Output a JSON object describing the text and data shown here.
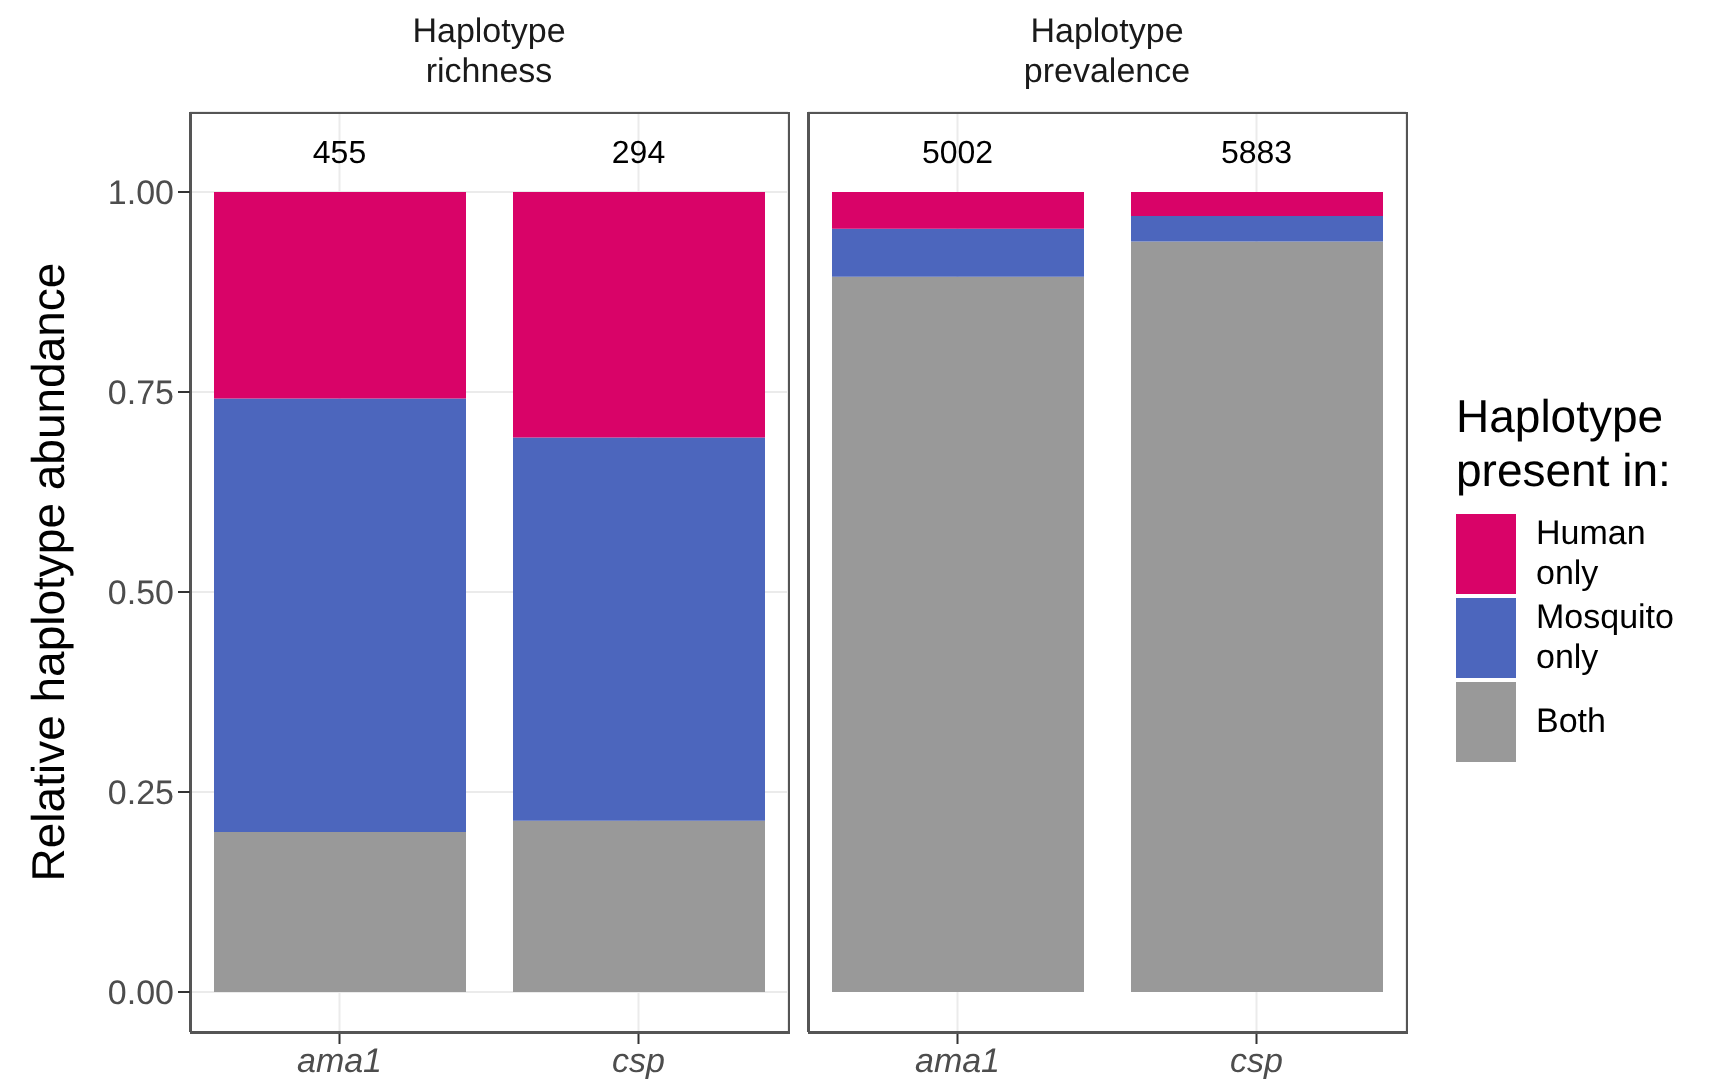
{
  "chart_data": [
    {
      "type": "bar",
      "title": "Haplotype\nrichness",
      "ylabel": "Relative haplotype abundance",
      "categories": [
        "ama1",
        "csp"
      ],
      "stacked": true,
      "ylim": [
        -0.05,
        1.1
      ],
      "yticks": [
        {
          "value": 0,
          "label": "0.00"
        },
        {
          "value": 0.25,
          "label": "0.25"
        },
        {
          "value": 0.5,
          "label": "0.50"
        },
        {
          "value": 0.75,
          "label": "0.75"
        },
        {
          "value": 1,
          "label": "1.00"
        }
      ],
      "grid": true,
      "legend": "right",
      "legend_title": "Haplotype\npresent in:",
      "annotations": [
        "455",
        "294"
      ],
      "series": [
        {
          "name": "Both",
          "color": "#999999",
          "values": [
            0.2,
            0.214
          ]
        },
        {
          "name": "Mosquito\nonly",
          "color": "#4c66bd",
          "values": [
            0.542,
            0.479
          ]
        },
        {
          "name": "Human\nonly",
          "color": "#d90368",
          "values": [
            0.258,
            0.307
          ]
        }
      ]
    },
    {
      "type": "bar",
      "title": "Haplotype\nprevalence",
      "categories": [
        "ama1",
        "csp"
      ],
      "stacked": true,
      "ylim": [
        -0.05,
        1.1
      ],
      "yticks": [
        {
          "value": 0,
          "label": null
        },
        {
          "value": 0.25,
          "label": null
        },
        {
          "value": 0.5,
          "label": null
        },
        {
          "value": 0.75,
          "label": null
        },
        {
          "value": 1,
          "label": null
        }
      ],
      "grid": true,
      "tick_labels": "x",
      "annotations": [
        "5002",
        "5883"
      ],
      "series": [
        {
          "color": "#999999",
          "values": [
            0.894,
            0.938
          ]
        },
        {
          "color": "#4c66bd",
          "values": [
            0.06,
            0.032
          ]
        },
        {
          "color": "#d90368",
          "values": [
            0.046,
            0.03
          ]
        }
      ]
    }
  ]
}
